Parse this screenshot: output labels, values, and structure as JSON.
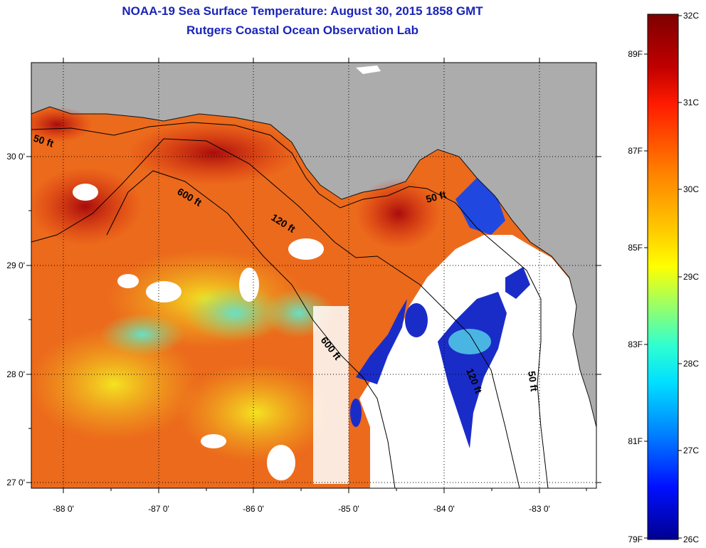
{
  "title": {
    "line1": "NOAA-19 Sea Surface Temperature:  August 30, 2015 1858 GMT",
    "line2": "Rutgers Coastal Ocean Observation Lab"
  },
  "axes": {
    "x_labels": [
      "-88 0'",
      "-87 0'",
      "-86 0'",
      "-85 0'",
      "-84 0'",
      "-83 0'"
    ],
    "y_labels": [
      "30 0'",
      "29 0'",
      "28 0'",
      "27 0'"
    ]
  },
  "contours": {
    "labels": [
      "50 ft",
      "600 ft",
      "120 ft",
      "50 ft",
      "600 ft",
      "120 ft",
      "50 ft"
    ]
  },
  "colorbar": {
    "celsius_labels": [
      "32C",
      "31C",
      "30C",
      "29C",
      "28C",
      "27C",
      "26C"
    ],
    "fahrenheit_labels": [
      "89F",
      "87F",
      "85F",
      "83F",
      "81F",
      "79F"
    ]
  },
  "colors": {
    "title": "#1a24b8",
    "land": "#acacac",
    "no_data": "#ffffff"
  }
}
